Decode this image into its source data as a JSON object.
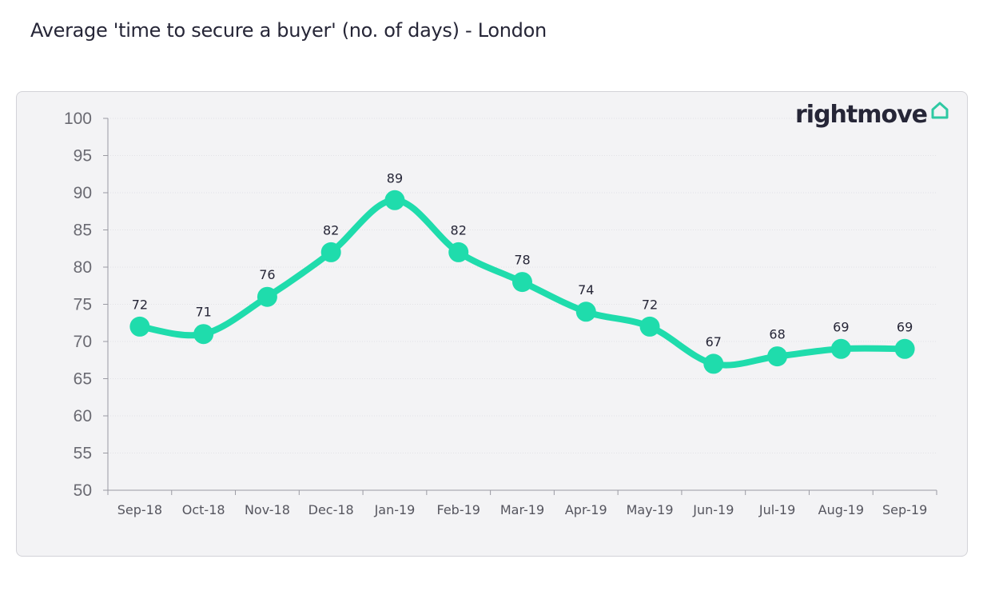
{
  "header": {
    "title": "Average 'time to secure a buyer' (no. of days) - London"
  },
  "logo": {
    "text": "rightmove",
    "icon": "house-icon"
  },
  "colors": {
    "line": "#1fdcac",
    "text_dark": "#262637",
    "card_bg": "#f3f3f5",
    "logo_house": "#2fc9a3"
  },
  "chart_data": {
    "type": "line",
    "title": "Average 'time to secure a buyer' (no. of days) - London",
    "xlabel": "",
    "ylabel": "",
    "categories": [
      "Sep-18",
      "Oct-18",
      "Nov-18",
      "Dec-18",
      "Jan-19",
      "Feb-19",
      "Mar-19",
      "Apr-19",
      "May-19",
      "Jun-19",
      "Jul-19",
      "Aug-19",
      "Sep-19"
    ],
    "values": [
      72,
      71,
      76,
      82,
      89,
      82,
      78,
      74,
      72,
      67,
      68,
      69,
      69
    ],
    "ylim": [
      50,
      100
    ],
    "yticks": [
      50,
      55,
      60,
      65,
      70,
      75,
      80,
      85,
      90,
      95,
      100
    ],
    "grid": true,
    "legend": "none",
    "data_labels": true,
    "smooth": true
  }
}
